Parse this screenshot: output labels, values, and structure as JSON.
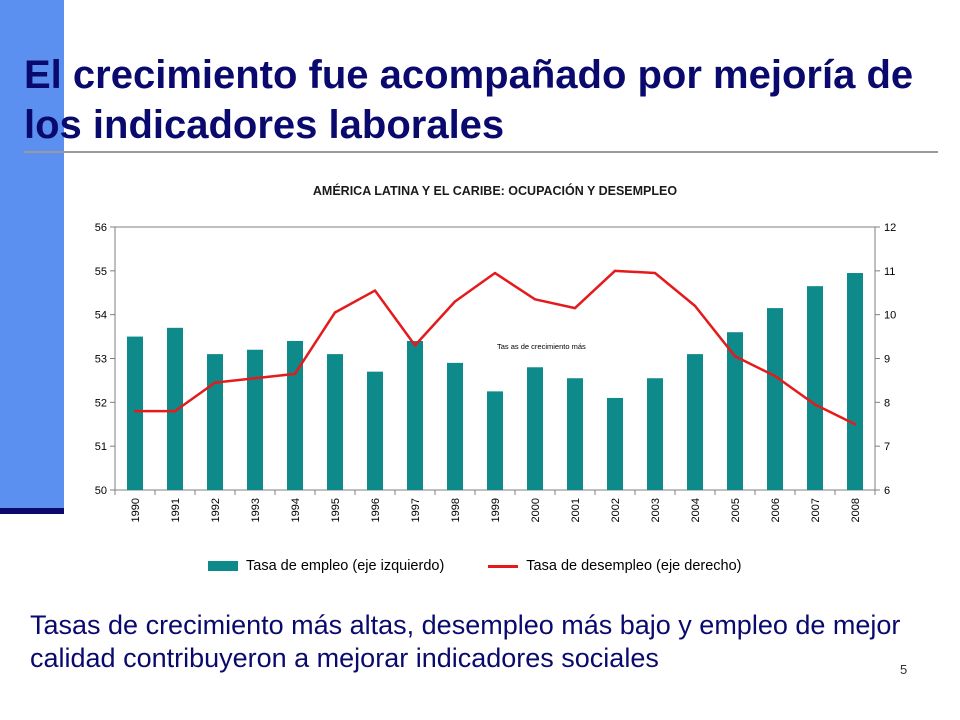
{
  "slide": {
    "title": "El crecimiento fue acompañado por mejoría de los indicadores laborales",
    "bottom_text": "Tasas de crecimiento más altas, desempleo más bajo y empleo de mejor calidad contribuyeron a mejorar indicadores sociales",
    "page_number": "5",
    "accent_color": "#5b8ff0",
    "title_color": "#0a0a6e"
  },
  "chart_data": {
    "type": "bar",
    "title": "AMÉRICA LATINA Y EL CARIBE: OCUPACIÓN Y DESEMPLEO",
    "categories": [
      "1990",
      "1991",
      "1992",
      "1993",
      "1994",
      "1995",
      "1996",
      "1997",
      "1998",
      "1999",
      "2000",
      "2001",
      "2002",
      "2003",
      "2004",
      "2005",
      "2006",
      "2007",
      "2008"
    ],
    "series": [
      {
        "name": "Tasa de empleo (eje izquierdo)",
        "type": "bar",
        "axis": "left",
        "color": "#0e8a8a",
        "values": [
          53.5,
          53.7,
          53.1,
          53.2,
          53.4,
          53.1,
          52.7,
          53.4,
          52.9,
          52.25,
          52.8,
          52.55,
          52.1,
          52.55,
          53.1,
          53.6,
          54.15,
          54.65,
          54.95
        ]
      },
      {
        "name": "Tasa de desempleo (eje derecho)",
        "type": "line",
        "axis": "right",
        "color": "#e41a1c",
        "values": [
          7.8,
          7.8,
          8.45,
          8.55,
          8.65,
          10.05,
          10.55,
          9.3,
          10.3,
          10.95,
          10.35,
          10.15,
          11.0,
          10.95,
          10.2,
          9.05,
          8.6,
          7.95,
          7.5
        ]
      }
    ],
    "y_left": {
      "ylim": [
        50,
        56
      ],
      "ticks": [
        "50",
        "51",
        "52",
        "53",
        "54",
        "55",
        "56"
      ]
    },
    "y_right": {
      "ylim": [
        6,
        12
      ],
      "ticks": [
        "6",
        "7",
        "8",
        "9",
        "10",
        "11",
        "12"
      ]
    },
    "annotation": "Tas as de crecimiento más",
    "grid": false,
    "legend_position": "bottom"
  }
}
